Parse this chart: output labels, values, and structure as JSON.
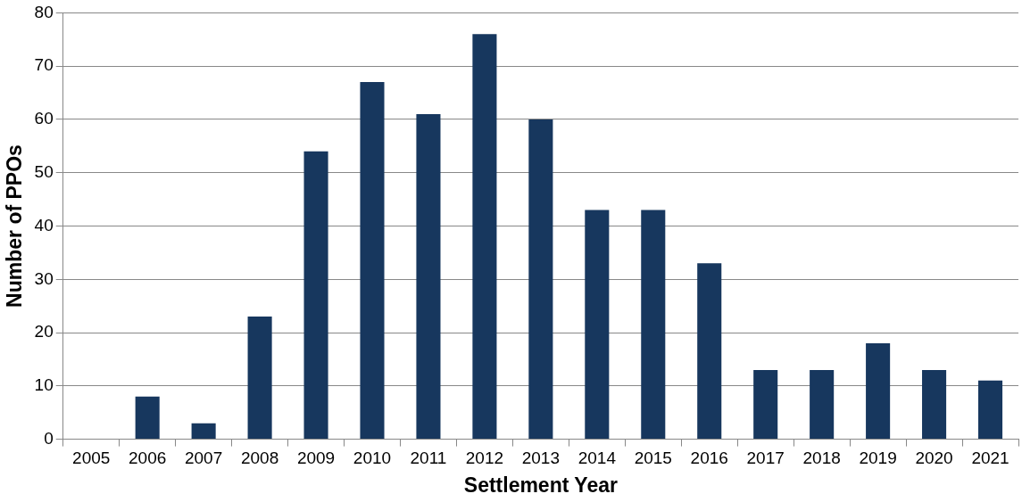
{
  "chart_data": {
    "type": "bar",
    "xlabel": "Settlement Year",
    "ylabel": "Number of PPOs",
    "categories": [
      "2005",
      "2006",
      "2007",
      "2008",
      "2009",
      "2010",
      "2011",
      "2012",
      "2013",
      "2014",
      "2015",
      "2016",
      "2017",
      "2018",
      "2019",
      "2020",
      "2021"
    ],
    "values": [
      0,
      8,
      3,
      23,
      54,
      67,
      61,
      76,
      60,
      43,
      43,
      33,
      13,
      13,
      18,
      13,
      11
    ],
    "color": "#17375e",
    "ylim": [
      0,
      80
    ],
    "yticks": [
      0,
      10,
      20,
      30,
      40,
      50,
      60,
      70,
      80
    ],
    "grid": "y",
    "legend": false
  }
}
